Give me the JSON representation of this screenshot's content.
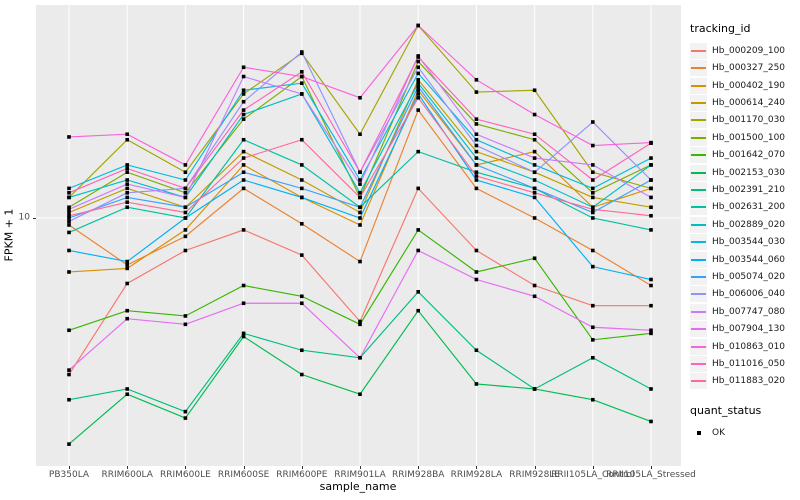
{
  "chart_data": {
    "type": "line",
    "title": "",
    "xlabel": "sample_name",
    "ylabel": "FPKM + 1",
    "legend_title": "tracking_id",
    "legend2": {
      "title": "quant_status",
      "items": [
        "OK"
      ]
    },
    "y_scale": "log10",
    "y_ticks": [
      {
        "value": 10,
        "label": "10"
      }
    ],
    "ylim_log": [
      1.1,
      60
    ],
    "grid": "vertical-per-category-plus-y10",
    "panel_bg": "#EBEBEB",
    "grid_color": "#FFFFFF",
    "marker": "black-square",
    "x_categories": [
      "PB350LA",
      "RRIM600LA",
      "RRIM600LE",
      "RRIM600SE",
      "RRIM600PE",
      "RRIM901LA",
      "RRIM928BA",
      "RRIM928LA",
      "RRIM928LE",
      "RRII105LA_Control",
      "RRII105LA_Stressed"
    ],
    "series": [
      {
        "name": "Hb_000209_100",
        "color": "#F8766D",
        "values": [
          2.5,
          5.6,
          7.5,
          9.0,
          7.2,
          4.0,
          13.0,
          7.5,
          5.5,
          4.6,
          4.6
        ]
      },
      {
        "name": "Hb_000327_250",
        "color": "#EA8331",
        "values": [
          9.4,
          6.6,
          8.5,
          13.0,
          9.5,
          6.8,
          26.0,
          13.0,
          10.0,
          7.5,
          5.5
        ]
      },
      {
        "name": "Hb_000402_190",
        "color": "#D89000",
        "values": [
          6.2,
          6.4,
          9.0,
          16.0,
          12.0,
          9.4,
          31.0,
          16.0,
          18.0,
          11.0,
          13.0
        ]
      },
      {
        "name": "Hb_000614_240",
        "color": "#C09B00",
        "values": [
          10.5,
          13.0,
          11.0,
          18.0,
          14.0,
          10.5,
          34.0,
          18.0,
          15.0,
          12.0,
          11.0
        ]
      },
      {
        "name": "Hb_001170_030",
        "color": "#A3A500",
        "values": [
          12.0,
          20.0,
          15.0,
          30.0,
          43.0,
          21.0,
          55.0,
          30.5,
          31.0,
          15.0,
          13.0
        ]
      },
      {
        "name": "Hb_001500_100",
        "color": "#7CAE00",
        "values": [
          11.0,
          15.0,
          12.5,
          24.0,
          35.0,
          12.0,
          40.0,
          23.0,
          20.0,
          12.5,
          16.0
        ]
      },
      {
        "name": "Hb_001642_070",
        "color": "#39B600",
        "values": [
          3.7,
          4.4,
          4.2,
          5.5,
          5.0,
          3.9,
          9.0,
          6.2,
          7.0,
          3.4,
          3.6
        ]
      },
      {
        "name": "Hb_002153_030",
        "color": "#00BB4E",
        "values": [
          1.35,
          2.1,
          1.7,
          3.5,
          2.5,
          2.1,
          4.4,
          2.3,
          2.2,
          2.0,
          1.65
        ]
      },
      {
        "name": "Hb_002391_210",
        "color": "#00BF7D",
        "values": [
          2.0,
          2.2,
          1.8,
          3.6,
          3.1,
          2.9,
          5.2,
          3.1,
          2.2,
          2.9,
          2.2
        ]
      },
      {
        "name": "Hb_002631_200",
        "color": "#00C1A3",
        "values": [
          8.8,
          11.0,
          10.0,
          20.0,
          16.0,
          11.0,
          18.0,
          15.0,
          13.0,
          10.0,
          9.0
        ]
      },
      {
        "name": "Hb_002889_020",
        "color": "#00BFC4",
        "values": [
          12.0,
          14.0,
          12.0,
          25.0,
          30.0,
          12.5,
          33.0,
          17.0,
          14.0,
          11.0,
          16.0
        ]
      },
      {
        "name": "Hb_003544_030",
        "color": "#00BAE0",
        "values": [
          13.0,
          16.0,
          14.0,
          31.0,
          33.0,
          14.0,
          36.0,
          20.0,
          16.0,
          13.0,
          17.0
        ]
      },
      {
        "name": "Hb_003544_060",
        "color": "#00B0F6",
        "values": [
          7.5,
          6.8,
          10.0,
          14.0,
          12.0,
          10.0,
          30.0,
          14.0,
          12.0,
          6.5,
          5.8
        ]
      },
      {
        "name": "Hb_005074_020",
        "color": "#35A2FF",
        "values": [
          10.0,
          12.0,
          11.0,
          15.0,
          13.0,
          11.0,
          32.0,
          16.0,
          13.0,
          10.5,
          14.0
        ]
      },
      {
        "name": "Hb_006006_040",
        "color": "#9590FF",
        "values": [
          9.7,
          12.5,
          13.0,
          28.0,
          43.5,
          15.0,
          38.0,
          19.0,
          15.0,
          23.4,
          14.0
        ]
      },
      {
        "name": "Hb_007747_080",
        "color": "#C77CFF",
        "values": [
          10.8,
          13.5,
          12.0,
          35.0,
          30.0,
          13.5,
          42.0,
          21.0,
          17.0,
          16.0,
          12.0
        ]
      },
      {
        "name": "Hb_007904_130",
        "color": "#E76BF3",
        "values": [
          2.6,
          4.1,
          3.9,
          4.7,
          4.7,
          2.9,
          7.5,
          5.8,
          5.0,
          3.8,
          3.7
        ]
      },
      {
        "name": "Hb_010863_010",
        "color": "#FA62DB",
        "values": [
          20.5,
          21.0,
          16.0,
          38.0,
          35.0,
          29.0,
          55.0,
          34.0,
          25.0,
          19.0,
          19.5
        ]
      },
      {
        "name": "Hb_011016_050",
        "color": "#FF62BC",
        "values": [
          12.5,
          15.5,
          13.0,
          26.0,
          36.5,
          15.0,
          41.6,
          24.0,
          21.0,
          14.0,
          19.4
        ]
      },
      {
        "name": "Hb_011883_020",
        "color": "#FF6A98",
        "values": [
          10.2,
          11.5,
          10.5,
          17.0,
          20.0,
          12.0,
          29.0,
          14.5,
          12.5,
          10.8,
          10.2
        ]
      }
    ]
  }
}
